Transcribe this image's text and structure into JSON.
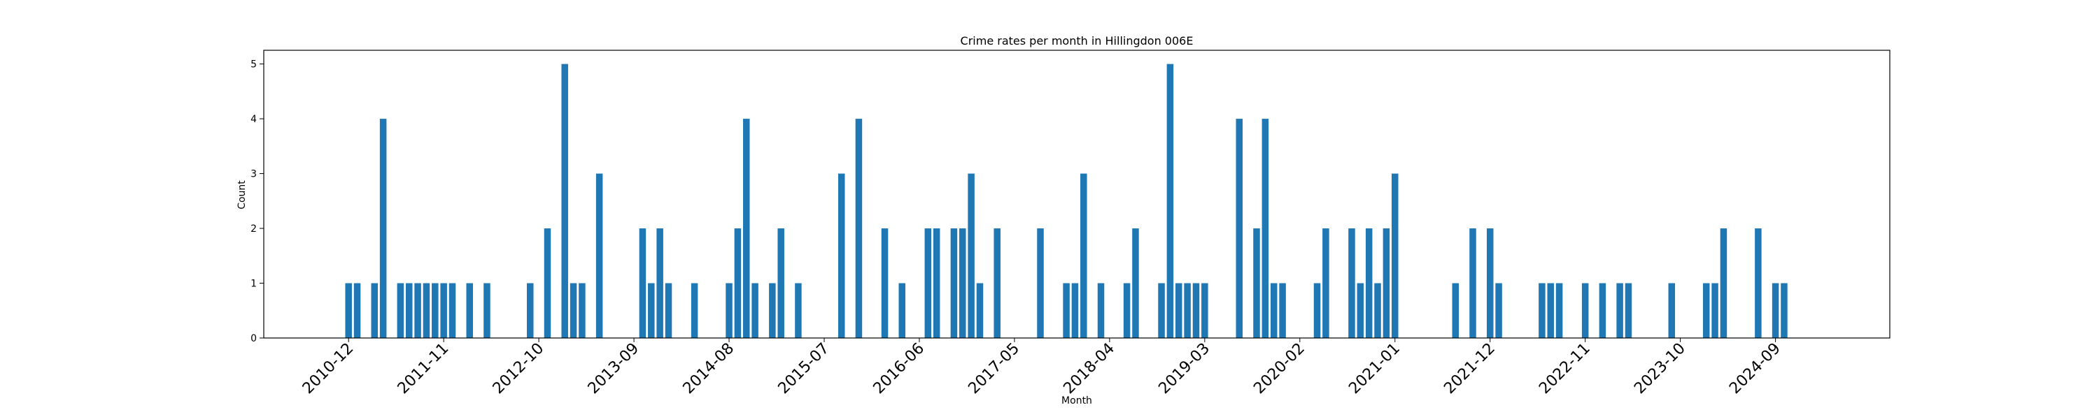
{
  "chart_data": {
    "type": "bar",
    "title": "Crime rates per month in Hillingdon 006E",
    "xlabel": "Month",
    "ylabel": "Count",
    "ylim": [
      0,
      5.25
    ],
    "yticks": [
      "0",
      "1",
      "2",
      "3",
      "4",
      "5"
    ],
    "xtick_labels": [
      "2010-12",
      "2011-11",
      "2012-10",
      "2013-09",
      "2014-08",
      "2015-07",
      "2016-06",
      "2017-05",
      "2018-04",
      "2019-03",
      "2020-02",
      "2021-01",
      "2021-12",
      "2022-11",
      "2023-10",
      "2024-09"
    ],
    "grid": false,
    "bar_color": "#1f77b4",
    "categories": [
      "2010-12",
      "2011-01",
      "2011-03",
      "2011-04",
      "2011-06",
      "2011-07",
      "2011-08",
      "2011-09",
      "2011-10",
      "2011-11",
      "2011-12",
      "2012-02",
      "2012-04",
      "2012-09",
      "2012-11",
      "2013-01",
      "2013-02",
      "2013-03",
      "2013-05",
      "2013-10",
      "2013-11",
      "2013-12",
      "2014-01",
      "2014-04",
      "2014-08",
      "2014-09",
      "2014-10",
      "2014-11",
      "2015-01",
      "2015-02",
      "2015-04",
      "2015-09",
      "2015-11",
      "2016-02",
      "2016-04",
      "2016-07",
      "2016-08",
      "2016-10",
      "2016-11",
      "2016-12",
      "2017-01",
      "2017-03",
      "2017-08",
      "2017-11",
      "2017-12",
      "2018-01",
      "2018-03",
      "2018-06",
      "2018-07",
      "2018-10",
      "2018-11",
      "2018-12",
      "2019-01",
      "2019-02",
      "2019-03",
      "2019-07",
      "2019-09",
      "2019-10",
      "2019-11",
      "2019-12",
      "2020-04",
      "2020-05",
      "2020-08",
      "2020-09",
      "2020-10",
      "2020-11",
      "2020-12",
      "2021-01",
      "2021-08",
      "2021-10",
      "2021-12",
      "2022-01",
      "2022-06",
      "2022-07",
      "2022-08",
      "2022-11",
      "2023-01",
      "2023-03",
      "2023-04",
      "2023-09",
      "2024-01",
      "2024-02",
      "2024-03",
      "2024-07",
      "2024-09",
      "2024-10"
    ],
    "values": [
      1,
      1,
      1,
      4,
      1,
      1,
      1,
      1,
      1,
      1,
      1,
      1,
      1,
      1,
      2,
      5,
      1,
      1,
      3,
      2,
      1,
      2,
      1,
      1,
      1,
      2,
      4,
      1,
      1,
      2,
      1,
      3,
      4,
      2,
      1,
      2,
      2,
      2,
      2,
      3,
      1,
      2,
      2,
      1,
      1,
      3,
      1,
      1,
      2,
      1,
      5,
      1,
      1,
      1,
      1,
      4,
      2,
      4,
      1,
      1,
      1,
      2,
      2,
      1,
      2,
      1,
      2,
      3,
      1,
      2,
      2,
      1,
      1,
      1,
      1,
      1,
      1,
      1,
      1,
      1,
      1,
      1,
      2,
      2,
      1,
      1
    ]
  }
}
